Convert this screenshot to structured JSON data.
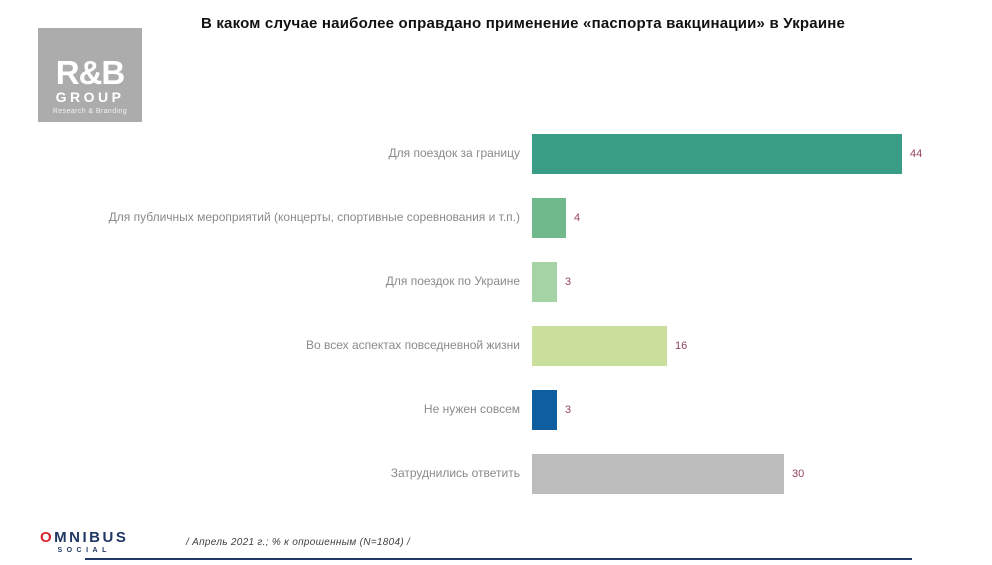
{
  "title": "В каком случае наиболее оправдано применение «паспорта вакцинации» в Украине",
  "rnb_logo": {
    "main": "R&B",
    "group": "GROUP",
    "subtitle": "Research & Branding"
  },
  "footer": {
    "omnibus_o": "O",
    "omnibus_rest": "MNIBUS",
    "omnibus_social": "SOCIAL",
    "note": "/ Апрель  2021 г.; % к опрошенным  (N=1804) /"
  },
  "chart_data": {
    "type": "bar",
    "orientation": "horizontal",
    "title": "В каком случае наиболее оправдано применение «паспорта вакцинации» в Украине",
    "categories": [
      "Для поездок за границу",
      "Для публичных  мероприятий (концерты, спортивные соревнования и т.п.)",
      "Для поездок по Украине",
      "Во всех аспектах  повседневной  жизни",
      "Не нужен  совсем",
      "Затруднились  ответить"
    ],
    "values": [
      44,
      4,
      3,
      16,
      3,
      30
    ],
    "bar_colors": [
      "#3a9d86",
      "#6fb98c",
      "#a6d3a6",
      "#c9df9b",
      "#0f5ea0",
      "#bcbcbc"
    ],
    "value_label_color": "#94435a",
    "category_label_color": "#8a8a8a",
    "xlim": [
      0,
      44
    ],
    "unit": "%",
    "grid": false,
    "legend": false,
    "axis_labels_visible": false
  }
}
